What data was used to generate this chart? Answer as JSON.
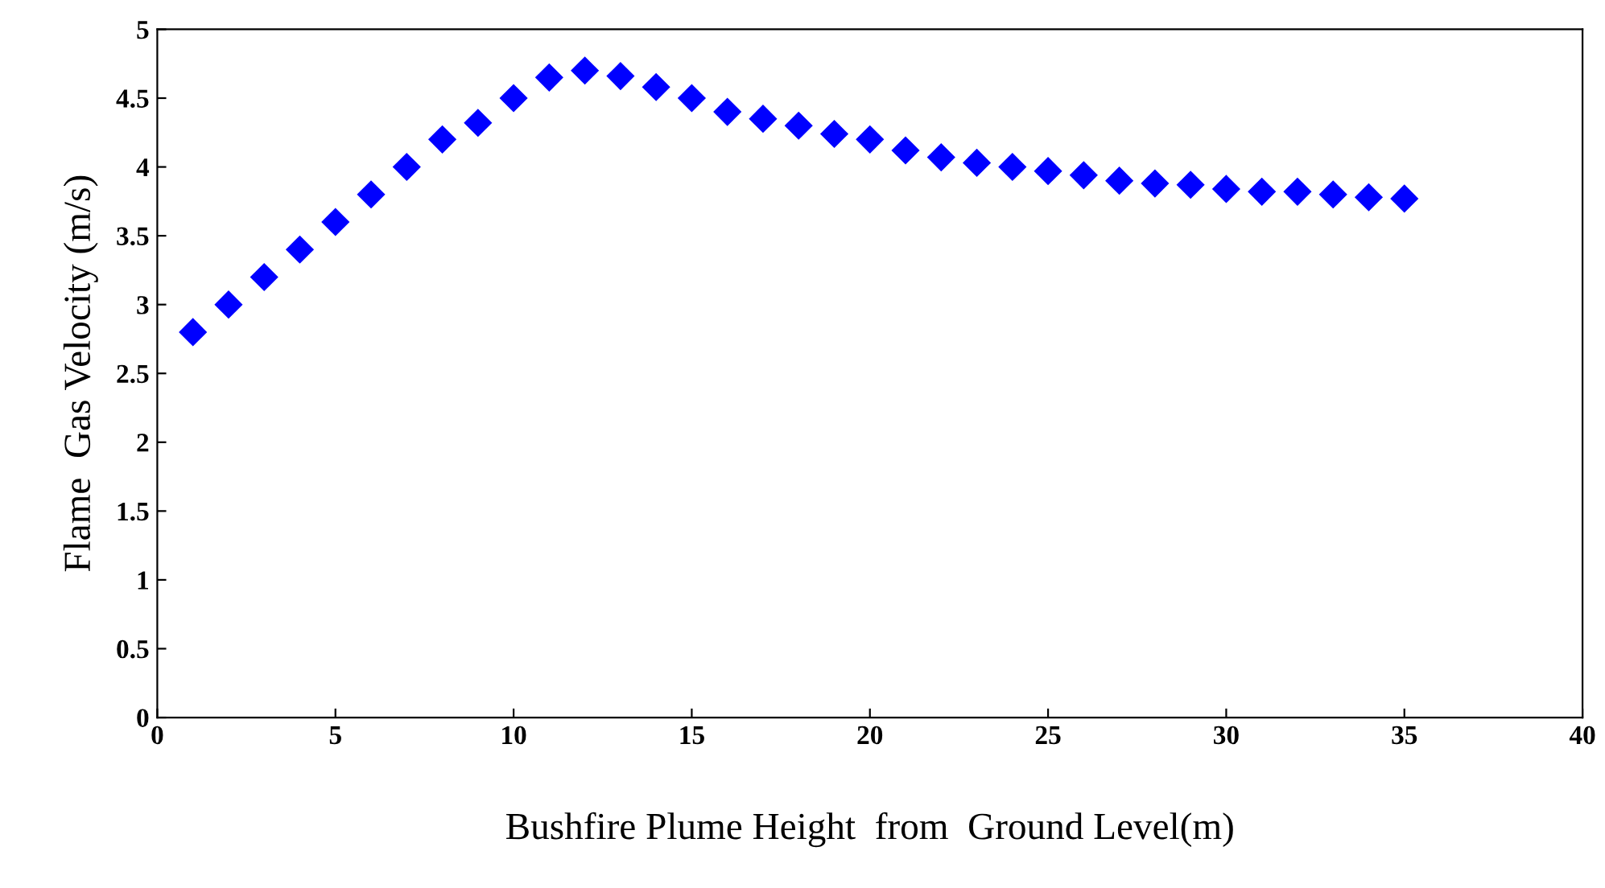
{
  "chart_data": {
    "type": "scatter",
    "xlabel": "Bushfire Plume Height  from  Ground Level(m)",
    "ylabel": "Flame  Gas Velocity (m/s)",
    "x": [
      1,
      2,
      3,
      4,
      5,
      6,
      7,
      8,
      9,
      10,
      11,
      12,
      13,
      14,
      15,
      16,
      17,
      18,
      19,
      20,
      21,
      22,
      23,
      24,
      25,
      26,
      27,
      28,
      29,
      30,
      31,
      32,
      33,
      34,
      35
    ],
    "series": [
      {
        "color": "#0000ff",
        "values": [
          2.8,
          3.0,
          3.2,
          3.4,
          3.6,
          3.8,
          4.0,
          4.2,
          4.32,
          4.5,
          4.65,
          4.7,
          4.66,
          4.58,
          4.5,
          4.4,
          4.35,
          4.3,
          4.24,
          4.2,
          4.12,
          4.07,
          4.03,
          4.0,
          3.97,
          3.94,
          3.9,
          3.88,
          3.87,
          3.84,
          3.82,
          3.82,
          3.8,
          3.78,
          3.77
        ]
      }
    ],
    "xlim": [
      0,
      40
    ],
    "xticks": [
      0,
      5,
      10,
      15,
      20,
      25,
      30,
      35,
      40
    ],
    "ylim": [
      0,
      5
    ],
    "yticks": [
      0,
      0.5,
      1,
      1.5,
      2,
      2.5,
      3,
      3.5,
      4,
      4.5,
      5
    ],
    "marker": "diamond",
    "grid": false,
    "legend": false
  }
}
